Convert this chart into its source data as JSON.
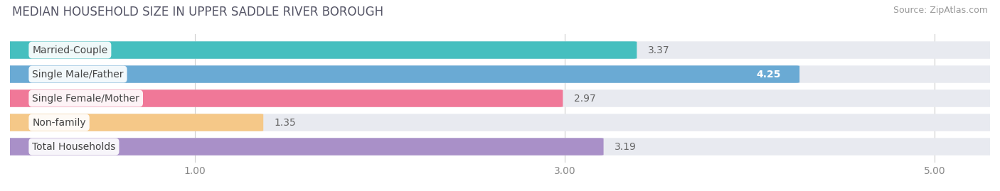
{
  "title": "MEDIAN HOUSEHOLD SIZE IN UPPER SADDLE RIVER BOROUGH",
  "source": "Source: ZipAtlas.com",
  "categories": [
    "Married-Couple",
    "Single Male/Father",
    "Single Female/Mother",
    "Non-family",
    "Total Households"
  ],
  "values": [
    3.37,
    4.25,
    2.97,
    1.35,
    3.19
  ],
  "bar_colors": [
    "#45BFBF",
    "#6AAAD4",
    "#F07898",
    "#F5C888",
    "#A990C8"
  ],
  "xlim": [
    0,
    5.3
  ],
  "xmin": 0,
  "xticks": [
    1.0,
    3.0,
    5.0
  ],
  "xticklabels": [
    "1.00",
    "3.00",
    "5.00"
  ],
  "background_color": "#ffffff",
  "bar_bg_color": "#e8eaf0",
  "title_fontsize": 12,
  "label_fontsize": 10,
  "value_fontsize": 10,
  "source_fontsize": 9,
  "bar_height": 0.68,
  "bar_spacing": 1.0,
  "figsize": [
    14.06,
    2.69
  ],
  "dpi": 100
}
